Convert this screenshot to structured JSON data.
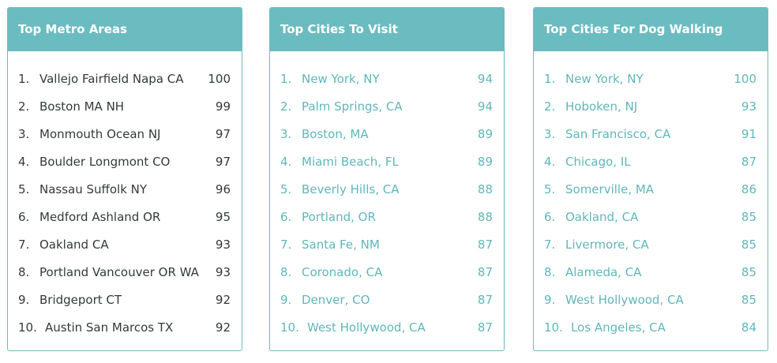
{
  "cards": [
    {
      "title": "Top Metro Areas",
      "items": [
        {
          "rank": "1.",
          "name": "Vallejo Fairfield Napa CA",
          "score": "100"
        },
        {
          "rank": "2.",
          "name": "Boston MA NH",
          "score": "99"
        },
        {
          "rank": "3.",
          "name": "Monmouth Ocean NJ",
          "score": "97"
        },
        {
          "rank": "4.",
          "name": "Boulder Longmont CO",
          "score": "97"
        },
        {
          "rank": "5.",
          "name": "Nassau Suffolk NY",
          "score": "96"
        },
        {
          "rank": "6.",
          "name": "Medford Ashland OR",
          "score": "95"
        },
        {
          "rank": "7.",
          "name": "Oakland CA",
          "score": "93"
        },
        {
          "rank": "8.",
          "name": "Portland Vancouver OR WA",
          "score": "93"
        },
        {
          "rank": "9.",
          "name": "Bridgeport CT",
          "score": "92"
        },
        {
          "rank": "10.",
          "name": "Austin San Marcos TX",
          "score": "92"
        }
      ]
    },
    {
      "title": "Top Cities To Visit",
      "items": [
        {
          "rank": "1.",
          "name": "New York, NY",
          "score": "94"
        },
        {
          "rank": "2.",
          "name": "Palm Springs, CA",
          "score": "94"
        },
        {
          "rank": "3.",
          "name": "Boston, MA",
          "score": "89"
        },
        {
          "rank": "4.",
          "name": "Miami Beach, FL",
          "score": "89"
        },
        {
          "rank": "5.",
          "name": "Beverly Hills, CA",
          "score": "88"
        },
        {
          "rank": "6.",
          "name": "Portland, OR",
          "score": "88"
        },
        {
          "rank": "7.",
          "name": "Santa Fe, NM",
          "score": "87"
        },
        {
          "rank": "8.",
          "name": "Coronado, CA",
          "score": "87"
        },
        {
          "rank": "9.",
          "name": "Denver, CO",
          "score": "87"
        },
        {
          "rank": "10.",
          "name": "West Hollywood, CA",
          "score": "87"
        }
      ]
    },
    {
      "title": "Top Cities For Dog Walking",
      "items": [
        {
          "rank": "1.",
          "name": "New York, NY",
          "score": "100"
        },
        {
          "rank": "2.",
          "name": "Hoboken, NJ",
          "score": "93"
        },
        {
          "rank": "3.",
          "name": "San Francisco, CA",
          "score": "91"
        },
        {
          "rank": "4.",
          "name": "Chicago, IL",
          "score": "87"
        },
        {
          "rank": "5.",
          "name": "Somerville, MA",
          "score": "86"
        },
        {
          "rank": "6.",
          "name": "Oakland, CA",
          "score": "85"
        },
        {
          "rank": "7.",
          "name": "Livermore, CA",
          "score": "85"
        },
        {
          "rank": "8.",
          "name": "Alameda, CA",
          "score": "85"
        },
        {
          "rank": "9.",
          "name": "West Hollywood, CA",
          "score": "85"
        },
        {
          "rank": "10.",
          "name": "Los Angeles, CA",
          "score": "84"
        }
      ]
    }
  ],
  "colors": {
    "header_bg": "#6bbcc0",
    "header_text": "#ffffff",
    "dark_text": "#333a3b",
    "teal_text": "#5fb7bb",
    "border": "#6bbcc0"
  }
}
